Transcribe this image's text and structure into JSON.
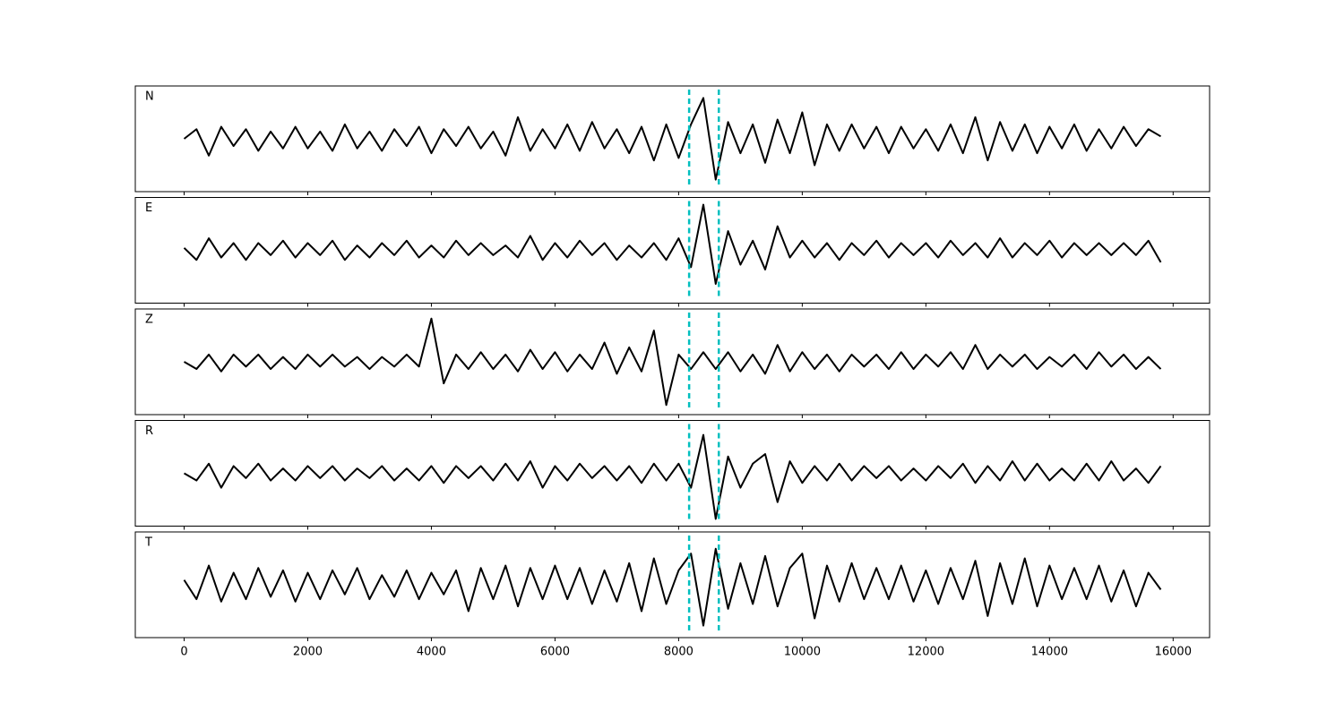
{
  "chart_data": {
    "type": "line",
    "layout": "stacked",
    "x": [
      0,
      200,
      400,
      600,
      800,
      1000,
      1200,
      1400,
      1600,
      1800,
      2000,
      2200,
      2400,
      2600,
      2800,
      3000,
      3200,
      3400,
      3600,
      3800,
      4000,
      4200,
      4400,
      4600,
      4800,
      5000,
      5200,
      5400,
      5600,
      5800,
      6000,
      6200,
      6400,
      6600,
      6800,
      7000,
      7200,
      7400,
      7600,
      7800,
      8000,
      8200,
      8400,
      8600,
      8800,
      9000,
      9200,
      9400,
      9600,
      9800,
      10000,
      10200,
      10400,
      10600,
      10800,
      11000,
      11200,
      11400,
      11600,
      11800,
      12000,
      12200,
      12400,
      12600,
      12800,
      13000,
      13200,
      13400,
      13600,
      13800,
      14000,
      14200,
      14400,
      14600,
      14800,
      15000,
      15200,
      15400,
      15600,
      15800
    ],
    "xlim": [
      -790,
      16590
    ],
    "xticks": [
      0,
      2000,
      4000,
      6000,
      8000,
      10000,
      12000,
      14000,
      16000
    ],
    "ylim": [
      -1.1,
      1.1
    ],
    "vlines": [
      8170,
      8650
    ],
    "vline_color": "#00bfbf",
    "series": [
      {
        "name": "N",
        "color": "#000000",
        "values": [
          0,
          0.2,
          -0.35,
          0.25,
          -0.15,
          0.2,
          -0.25,
          0.15,
          -0.2,
          0.25,
          -0.2,
          0.15,
          -0.25,
          0.3,
          -0.2,
          0.15,
          -0.25,
          0.2,
          -0.15,
          0.25,
          -0.3,
          0.2,
          -0.15,
          0.25,
          -0.2,
          0.15,
          -0.35,
          0.45,
          -0.25,
          0.2,
          -0.2,
          0.3,
          -0.25,
          0.35,
          -0.2,
          0.2,
          -0.3,
          0.25,
          -0.45,
          0.3,
          -0.4,
          0.3,
          0.85,
          -0.85,
          0.35,
          -0.3,
          0.3,
          -0.5,
          0.4,
          -0.3,
          0.55,
          -0.55,
          0.3,
          -0.25,
          0.3,
          -0.2,
          0.25,
          -0.3,
          0.25,
          -0.2,
          0.2,
          -0.25,
          0.3,
          -0.3,
          0.45,
          -0.45,
          0.35,
          -0.25,
          0.3,
          -0.3,
          0.25,
          -0.2,
          0.3,
          -0.25,
          0.2,
          -0.2,
          0.25,
          -0.15,
          0.2,
          0.05
        ]
      },
      {
        "name": "E",
        "color": "#000000",
        "values": [
          0.05,
          -0.2,
          0.25,
          -0.15,
          0.15,
          -0.2,
          0.15,
          -0.1,
          0.2,
          -0.15,
          0.15,
          -0.1,
          0.2,
          -0.2,
          0.1,
          -0.15,
          0.15,
          -0.1,
          0.2,
          -0.15,
          0.1,
          -0.15,
          0.2,
          -0.1,
          0.15,
          -0.1,
          0.1,
          -0.15,
          0.3,
          -0.2,
          0.15,
          -0.15,
          0.2,
          -0.1,
          0.15,
          -0.2,
          0.1,
          -0.15,
          0.15,
          -0.2,
          0.25,
          -0.35,
          0.95,
          -0.7,
          0.4,
          -0.3,
          0.2,
          -0.4,
          0.5,
          -0.15,
          0.2,
          -0.15,
          0.15,
          -0.2,
          0.15,
          -0.1,
          0.2,
          -0.15,
          0.15,
          -0.1,
          0.15,
          -0.15,
          0.2,
          -0.1,
          0.15,
          -0.15,
          0.25,
          -0.15,
          0.15,
          -0.1,
          0.2,
          -0.15,
          0.15,
          -0.1,
          0.15,
          -0.1,
          0.15,
          -0.1,
          0.2,
          -0.25
        ]
      },
      {
        "name": "Z",
        "color": "#000000",
        "values": [
          0,
          -0.15,
          0.15,
          -0.2,
          0.15,
          -0.1,
          0.15,
          -0.15,
          0.1,
          -0.15,
          0.15,
          -0.1,
          0.15,
          -0.1,
          0.1,
          -0.15,
          0.1,
          -0.1,
          0.15,
          -0.1,
          0.9,
          -0.45,
          0.15,
          -0.15,
          0.2,
          -0.15,
          0.15,
          -0.2,
          0.25,
          -0.15,
          0.2,
          -0.2,
          0.15,
          -0.15,
          0.4,
          -0.25,
          0.3,
          -0.2,
          0.65,
          -0.9,
          0.15,
          -0.15,
          0.2,
          -0.15,
          0.2,
          -0.2,
          0.15,
          -0.25,
          0.35,
          -0.2,
          0.2,
          -0.15,
          0.15,
          -0.2,
          0.15,
          -0.1,
          0.15,
          -0.15,
          0.2,
          -0.15,
          0.15,
          -0.1,
          0.2,
          -0.15,
          0.35,
          -0.15,
          0.15,
          -0.1,
          0.15,
          -0.15,
          0.1,
          -0.1,
          0.15,
          -0.15,
          0.2,
          -0.1,
          0.15,
          -0.15,
          0.1,
          -0.15
        ]
      },
      {
        "name": "R",
        "color": "#000000",
        "values": [
          0,
          -0.15,
          0.2,
          -0.3,
          0.15,
          -0.1,
          0.2,
          -0.15,
          0.1,
          -0.15,
          0.15,
          -0.1,
          0.15,
          -0.15,
          0.1,
          -0.1,
          0.15,
          -0.15,
          0.1,
          -0.15,
          0.15,
          -0.2,
          0.15,
          -0.1,
          0.15,
          -0.15,
          0.2,
          -0.15,
          0.25,
          -0.3,
          0.15,
          -0.15,
          0.2,
          -0.1,
          0.15,
          -0.15,
          0.15,
          -0.2,
          0.2,
          -0.15,
          0.2,
          -0.3,
          0.8,
          -0.95,
          0.35,
          -0.3,
          0.2,
          0.4,
          -0.6,
          0.25,
          -0.2,
          0.15,
          -0.15,
          0.2,
          -0.15,
          0.15,
          -0.1,
          0.15,
          -0.15,
          0.1,
          -0.15,
          0.15,
          -0.1,
          0.2,
          -0.2,
          0.15,
          -0.15,
          0.25,
          -0.15,
          0.2,
          -0.15,
          0.1,
          -0.15,
          0.2,
          -0.15,
          0.25,
          -0.15,
          0.1,
          -0.2,
          0.15
        ]
      },
      {
        "name": "T",
        "color": "#000000",
        "values": [
          0.1,
          -0.3,
          0.4,
          -0.35,
          0.25,
          -0.3,
          0.35,
          -0.25,
          0.3,
          -0.35,
          0.25,
          -0.3,
          0.3,
          -0.2,
          0.35,
          -0.3,
          0.2,
          -0.25,
          0.3,
          -0.3,
          0.25,
          -0.2,
          0.3,
          -0.55,
          0.35,
          -0.3,
          0.4,
          -0.45,
          0.35,
          -0.3,
          0.4,
          -0.3,
          0.35,
          -0.4,
          0.3,
          -0.35,
          0.45,
          -0.55,
          0.55,
          -0.4,
          0.3,
          0.65,
          -0.85,
          0.75,
          -0.5,
          0.45,
          -0.4,
          0.6,
          -0.45,
          0.35,
          0.65,
          -0.7,
          0.4,
          -0.35,
          0.45,
          -0.3,
          0.35,
          -0.3,
          0.4,
          -0.35,
          0.3,
          -0.4,
          0.35,
          -0.3,
          0.5,
          -0.65,
          0.45,
          -0.4,
          0.55,
          -0.45,
          0.4,
          -0.3,
          0.35,
          -0.3,
          0.4,
          -0.35,
          0.3,
          -0.45,
          0.25,
          -0.1
        ]
      }
    ]
  }
}
